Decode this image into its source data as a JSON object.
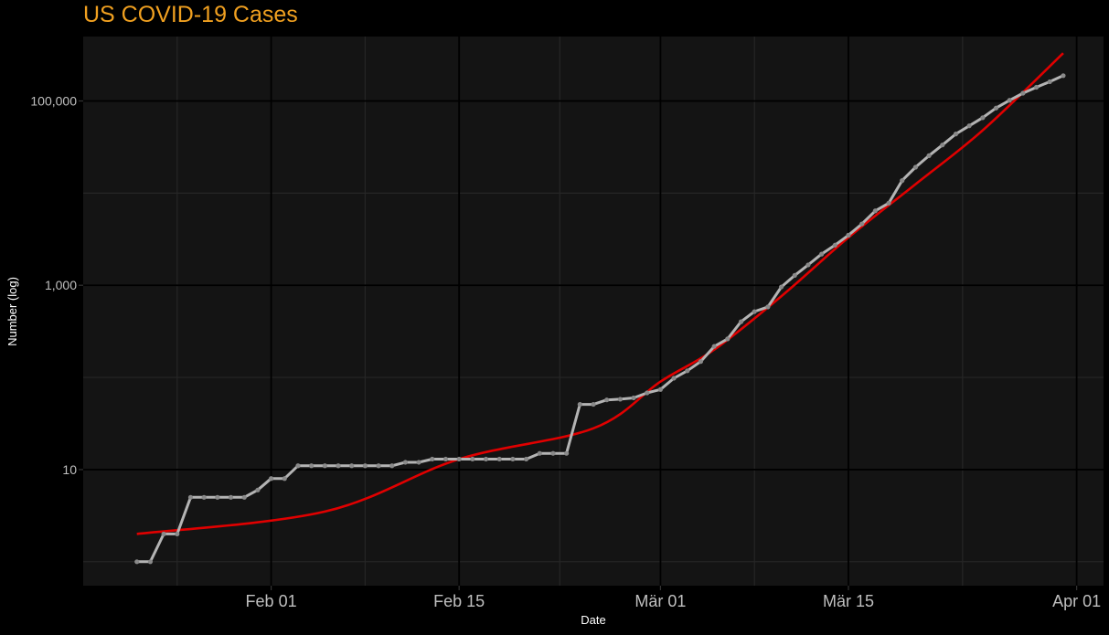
{
  "chart_data": {
    "type": "line",
    "title": "US COVID-19 Cases",
    "xlabel": "Date",
    "ylabel": "Number (log)",
    "y_scale": "log10",
    "xlim": [
      "2020-01-18",
      "2020-04-03"
    ],
    "ylim": [
      0.55,
      500000
    ],
    "x_ticks": [
      {
        "date": "2020-02-01",
        "label": "Feb 01"
      },
      {
        "date": "2020-02-15",
        "label": "Feb 15"
      },
      {
        "date": "2020-03-01",
        "label": "Mär 01"
      },
      {
        "date": "2020-03-15",
        "label": "Mär 15"
      },
      {
        "date": "2020-04-01",
        "label": "Apr 01"
      }
    ],
    "y_ticks": [
      {
        "value": 10,
        "label": "10"
      },
      {
        "value": 1000,
        "label": "1,000"
      },
      {
        "value": 100000,
        "label": "100,000"
      }
    ],
    "grid": true,
    "legend": "none",
    "colors": {
      "page_background": "#000000",
      "panel_background": "#141414",
      "grid_major": "#000000",
      "grid_minor": "#262626",
      "series": "#b4b4b4",
      "trend": "#e00000",
      "title": "#f0a020",
      "tick_label": "#bfbfbf",
      "axis_title": "#ffffff"
    },
    "series": [
      {
        "style": "line-with-points",
        "x": [
          "2020-01-22",
          "2020-01-23",
          "2020-01-24",
          "2020-01-25",
          "2020-01-26",
          "2020-01-27",
          "2020-01-28",
          "2020-01-29",
          "2020-01-30",
          "2020-01-31",
          "2020-02-01",
          "2020-02-02",
          "2020-02-03",
          "2020-02-04",
          "2020-02-05",
          "2020-02-06",
          "2020-02-07",
          "2020-02-08",
          "2020-02-09",
          "2020-02-10",
          "2020-02-11",
          "2020-02-12",
          "2020-02-13",
          "2020-02-14",
          "2020-02-15",
          "2020-02-16",
          "2020-02-17",
          "2020-02-18",
          "2020-02-19",
          "2020-02-20",
          "2020-02-21",
          "2020-02-22",
          "2020-02-23",
          "2020-02-24",
          "2020-02-25",
          "2020-02-26",
          "2020-02-27",
          "2020-02-28",
          "2020-02-29",
          "2020-03-01",
          "2020-03-02",
          "2020-03-03",
          "2020-03-04",
          "2020-03-05",
          "2020-03-06",
          "2020-03-07",
          "2020-03-08",
          "2020-03-09",
          "2020-03-10",
          "2020-03-11",
          "2020-03-12",
          "2020-03-13",
          "2020-03-14",
          "2020-03-15",
          "2020-03-16",
          "2020-03-17",
          "2020-03-18",
          "2020-03-19",
          "2020-03-20",
          "2020-03-21",
          "2020-03-22",
          "2020-03-23",
          "2020-03-24",
          "2020-03-25",
          "2020-03-26",
          "2020-03-27",
          "2020-03-28",
          "2020-03-29",
          "2020-03-30",
          "2020-03-31"
        ],
        "values": [
          1,
          1,
          2,
          2,
          5,
          5,
          5,
          5,
          5,
          6,
          8,
          8,
          11,
          11,
          11,
          11,
          11,
          11,
          11,
          11,
          12,
          12,
          13,
          13,
          13,
          13,
          13,
          13,
          13,
          13,
          15,
          15,
          15,
          51,
          51,
          57,
          58,
          60,
          68,
          74,
          98,
          118,
          149,
          217,
          262,
          402,
          518,
          583,
          959,
          1281,
          1663,
          2179,
          2727,
          3499,
          4632,
          6421,
          7786,
          13680,
          19101,
          25493,
          33276,
          43847,
          53740,
          65778,
          83836,
          101657,
          121478,
          140886,
          161807,
          188172
        ]
      }
    ],
    "trend": {
      "style": "line",
      "x": [
        "2020-01-22",
        "2020-02-05",
        "2020-02-15",
        "2020-02-25",
        "2020-03-01",
        "2020-03-05",
        "2020-03-10",
        "2020-03-15",
        "2020-03-20",
        "2020-03-25",
        "2020-03-31"
      ],
      "values": [
        2,
        3.5,
        13,
        28,
        90,
        200,
        760,
        3300,
        12500,
        48000,
        330000
      ]
    }
  }
}
